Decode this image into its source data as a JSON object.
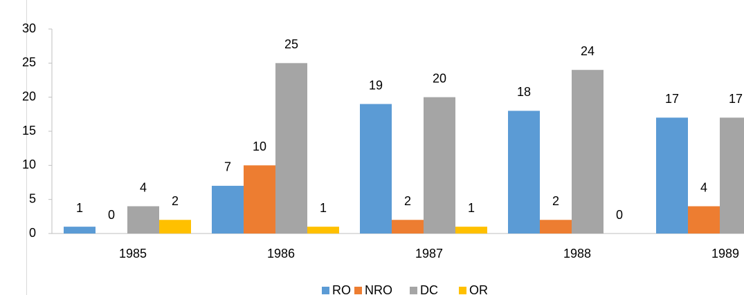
{
  "chart_data": {
    "type": "bar",
    "categories": [
      "1985",
      "1986",
      "1987",
      "1988",
      "1989"
    ],
    "series": [
      {
        "name": "RO",
        "color": "#5b9bd5",
        "values": [
          1,
          7,
          19,
          18,
          17
        ]
      },
      {
        "name": "NRO",
        "color": "#ed7d31",
        "values": [
          0,
          10,
          2,
          2,
          4
        ]
      },
      {
        "name": "DC",
        "color": "#a5a5a5",
        "values": [
          4,
          25,
          20,
          24,
          17
        ]
      },
      {
        "name": "OR",
        "color": "#ffc000",
        "values": [
          2,
          1,
          1,
          0,
          null
        ]
      }
    ],
    "ylim": [
      0,
      30
    ],
    "yticks": [
      0,
      5,
      10,
      15,
      20,
      25,
      30
    ],
    "grid": false,
    "legend": "bottom"
  }
}
